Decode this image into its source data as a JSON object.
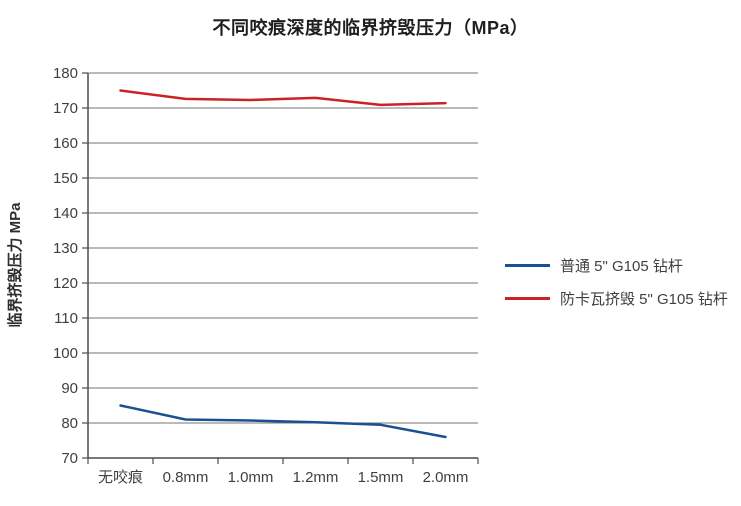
{
  "chart_data": {
    "type": "line",
    "title": "不同咬痕深度的临界挤毁压力（MPa）",
    "ylabel": "临界挤毁压力 MPa",
    "xlabel": "",
    "categories": [
      "无咬痕",
      "0.8mm",
      "1.0mm",
      "1.2mm",
      "1.5mm",
      "2.0mm"
    ],
    "series": [
      {
        "name": "普通 5\" G105 钻杆",
        "color": "#1a5191",
        "values": [
          85,
          81,
          80.7,
          80.2,
          79.5,
          76
        ]
      },
      {
        "name": "防卡瓦挤毁 5\" G105 钻杆",
        "color": "#cb2127",
        "values": [
          175,
          172.6,
          172.3,
          172.9,
          170.9,
          171.4
        ]
      }
    ],
    "ylim": [
      70,
      180
    ],
    "yticks": [
      70,
      80,
      90,
      100,
      110,
      120,
      130,
      140,
      150,
      160,
      170,
      180
    ],
    "grid": true,
    "legend_position": "right"
  }
}
